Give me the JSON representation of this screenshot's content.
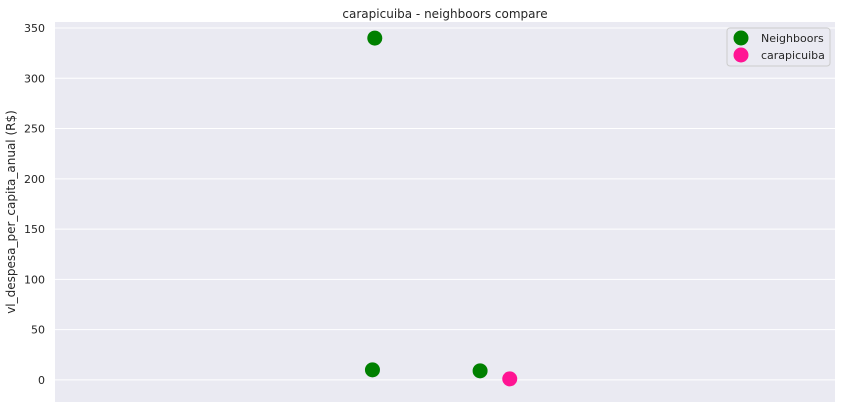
{
  "chart_data": {
    "type": "scatter",
    "title": "carapicuiba - neighboors compare",
    "xlabel": "",
    "ylabel": "vl_despesa_per_capita_anual (R$)",
    "ylim": [
      -22,
      356
    ],
    "yticks": [
      0,
      50,
      100,
      150,
      200,
      250,
      300,
      350
    ],
    "grid": true,
    "legend_position": "top-right",
    "series": [
      {
        "name": "Neighboors",
        "color": "#008000",
        "points": [
          {
            "x": 0.41,
            "y": 340
          },
          {
            "x": 0.407,
            "y": 10
          },
          {
            "x": 0.545,
            "y": 9
          }
        ]
      },
      {
        "name": "carapicuiba",
        "color": "#ff1493",
        "points": [
          {
            "x": 0.583,
            "y": 1
          }
        ]
      }
    ]
  }
}
